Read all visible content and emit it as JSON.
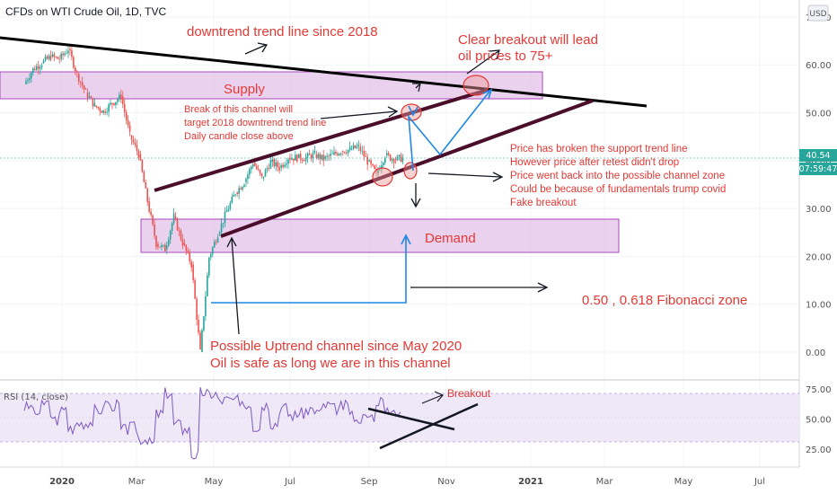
{
  "header": {
    "title": "CFDs on WTI Crude Oil, 1D, TVC",
    "currency": "USD"
  },
  "price_badge": {
    "price": "40.54",
    "countdown": "07:59:47"
  },
  "colors": {
    "up": "#26a69a",
    "down": "#ef5350",
    "annotation": "#e53935",
    "zone": "#e1bee7",
    "zone_border": "#9c27b0",
    "rsi_line": "#7e57c2",
    "trend": "#4a0e2b",
    "arrow_blue": "#1e88e5"
  },
  "annotations": {
    "downtrend": "downtrend trend line since 2018",
    "breakout_1": "Clear breakout will lead",
    "breakout_2": "oil prices to 75+",
    "supply": "Supply",
    "demand": "Demand",
    "channel_break_1": "Break of this channel will",
    "channel_break_2": "target 2018 downtrend trend line",
    "channel_break_3": "Daily candle close above",
    "support_1": "Price has broken the support trend line",
    "support_2": "However price after retest didn't drop",
    "support_3": "Price went back into the possible channel zone",
    "support_4": "Could be because of fundamentals trump covid",
    "support_5": "Fake breakout",
    "fib": "0.50 , 0.618 Fibonacci zone",
    "uptrend_1": "Possible Uptrend channel since May 2020",
    "uptrend_2": "Oil is safe as long we are in this channel",
    "rsi_breakout": "Breakout"
  },
  "chart_data": [
    {
      "type": "candlestick",
      "title": "CFDs on WTI Crude Oil, 1D, TVC",
      "y_ticks": [
        "0.00",
        "10.00",
        "20.00",
        "30.00",
        "40.00",
        "50.00",
        "60.00",
        "70.00"
      ],
      "x_ticks": [
        "2020",
        "Mar",
        "May",
        "Jul",
        "Sep",
        "Nov",
        "2021",
        "Mar",
        "May",
        "Jul"
      ],
      "ylim": [
        -6,
        75
      ],
      "supply_zone": [
        53,
        59
      ],
      "demand_zone": [
        21,
        28
      ],
      "series_close": [
        [
          "2019-12-02",
          56.0
        ],
        [
          "2019-12-09",
          59.1
        ],
        [
          "2019-12-16",
          60.4
        ],
        [
          "2019-12-23",
          61.7
        ],
        [
          "2019-12-30",
          61.2
        ],
        [
          "2020-01-06",
          63.3
        ],
        [
          "2020-01-13",
          58.1
        ],
        [
          "2020-01-20",
          54.2
        ],
        [
          "2020-01-27",
          51.5
        ],
        [
          "2020-02-03",
          50.3
        ],
        [
          "2020-02-10",
          52.0
        ],
        [
          "2020-02-17",
          53.4
        ],
        [
          "2020-02-24",
          45.3
        ],
        [
          "2020-03-02",
          41.3
        ],
        [
          "2020-03-09",
          31.5
        ],
        [
          "2020-03-16",
          22.6
        ],
        [
          "2020-03-23",
          21.5
        ],
        [
          "2020-03-30",
          28.3
        ],
        [
          "2020-04-06",
          22.8
        ],
        [
          "2020-04-13",
          18.3
        ],
        [
          "2020-04-20",
          0.0
        ],
        [
          "2020-04-27",
          19.8
        ],
        [
          "2020-05-04",
          24.7
        ],
        [
          "2020-05-11",
          29.4
        ],
        [
          "2020-05-18",
          33.3
        ],
        [
          "2020-05-25",
          35.5
        ],
        [
          "2020-06-01",
          39.6
        ],
        [
          "2020-06-08",
          36.3
        ],
        [
          "2020-06-15",
          39.8
        ],
        [
          "2020-06-22",
          38.5
        ],
        [
          "2020-06-29",
          40.6
        ],
        [
          "2020-07-06",
          40.6
        ],
        [
          "2020-07-13",
          40.6
        ],
        [
          "2020-07-20",
          41.3
        ],
        [
          "2020-07-27",
          40.3
        ],
        [
          "2020-08-03",
          41.2
        ],
        [
          "2020-08-10",
          42.0
        ],
        [
          "2020-08-17",
          42.3
        ],
        [
          "2020-08-24",
          42.9
        ],
        [
          "2020-08-31",
          39.8
        ],
        [
          "2020-09-07",
          37.3
        ],
        [
          "2020-09-14",
          41.1
        ],
        [
          "2020-09-21",
          40.3
        ],
        [
          "2020-09-28",
          40.5
        ]
      ],
      "rsi": {
        "label": "RSI (14, close)",
        "y_ticks": [
          "25.00",
          "50.00",
          "75.00"
        ],
        "band": [
          30,
          70
        ]
      }
    }
  ]
}
